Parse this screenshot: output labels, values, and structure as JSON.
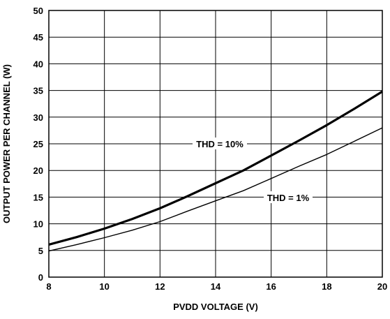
{
  "chart_data": {
    "type": "line",
    "xlabel": "PVDD VOLTAGE (V)",
    "ylabel": "OUTPUT POWER PER CHANNEL (W)",
    "xlim": [
      8,
      20
    ],
    "ylim": [
      0,
      50
    ],
    "x_ticks": [
      "8",
      "10",
      "12",
      "14",
      "16",
      "18",
      "20"
    ],
    "y_ticks": [
      "0",
      "5",
      "10",
      "15",
      "20",
      "25",
      "30",
      "35",
      "40",
      "45",
      "50"
    ],
    "grid": true,
    "series": [
      {
        "name": "THD = 10%",
        "x": [
          8,
          9,
          10,
          11,
          12,
          13,
          14,
          15,
          16,
          17,
          18,
          19,
          20
        ],
        "y": [
          6.1,
          7.5,
          9.1,
          10.9,
          12.9,
          15.2,
          17.6,
          20.0,
          22.8,
          25.6,
          28.5,
          31.6,
          34.8
        ]
      },
      {
        "name": "THD = 1%",
        "x": [
          8,
          9,
          10,
          11,
          12,
          13,
          14,
          15,
          16,
          17,
          18,
          19,
          20
        ],
        "y": [
          4.9,
          6.1,
          7.4,
          8.8,
          10.4,
          12.4,
          14.3,
          16.2,
          18.5,
          20.8,
          23.0,
          25.5,
          28.0
        ]
      }
    ],
    "annotations": [
      {
        "text": "THD = 10%",
        "series": "THD = 10%"
      },
      {
        "text": "THD = 1%",
        "series": "THD = 1%"
      }
    ]
  }
}
